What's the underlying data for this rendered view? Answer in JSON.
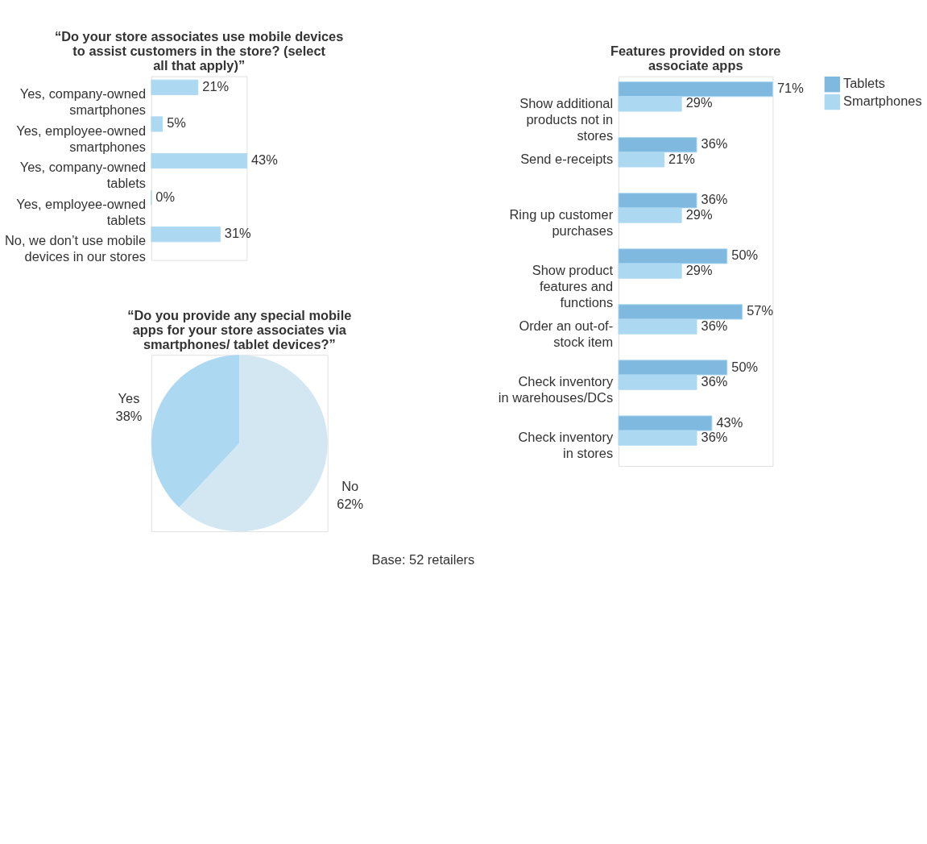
{
  "chart_data": [
    {
      "type": "bar",
      "orientation": "horizontal",
      "title": "“Do your store associates use mobile devices to assist customers in the store? (select all that apply)”",
      "categories": [
        "Yes, company-owned smartphones",
        "Yes, employee-owned smartphones",
        "Yes, company-owned tablets",
        "Yes, employee-owned tablets",
        "No, we don’t use mobile devices in our stores"
      ],
      "values": [
        21,
        5,
        43,
        0,
        31
      ],
      "color": "#add8f2",
      "value_labels": [
        "21%",
        "5%",
        "43%",
        "0%",
        "31%"
      ]
    },
    {
      "type": "pie",
      "title": "“Do you provide any special mobile apps for your store associates via smartphones/ tablet devices?”",
      "categories": [
        "Yes",
        "No"
      ],
      "values": [
        38,
        62
      ],
      "colors": [
        "#add8f2",
        "#d2e7f2"
      ],
      "value_labels": [
        "38%",
        "62%"
      ],
      "annotations": [
        "Base: 52 retailers"
      ]
    },
    {
      "type": "bar",
      "orientation": "horizontal",
      "title": "Features provided on store associate apps",
      "legend": "top right",
      "categories": [
        "Show additional products not in stores",
        "Send e-receipts",
        "Ring up customer purchases",
        "Show product features and functions",
        "Order an out-of-stock item",
        "Check inventory in warehouses/DCs",
        "Check inventory in stores"
      ],
      "series": [
        {
          "name": "Tablets",
          "color": "#80b9df",
          "values": [
            71,
            36,
            36,
            50,
            57,
            50,
            43
          ],
          "value_labels": [
            "71%",
            "36%",
            "36%",
            "50%",
            "57%",
            "50%",
            "43%"
          ]
        },
        {
          "name": "Smartphones",
          "color": "#add8f2",
          "values": [
            29,
            21,
            29,
            29,
            36,
            36,
            36
          ],
          "value_labels": [
            "29%",
            "21%",
            "29%",
            "29%",
            "36%",
            "36%",
            "36%"
          ]
        }
      ]
    }
  ]
}
